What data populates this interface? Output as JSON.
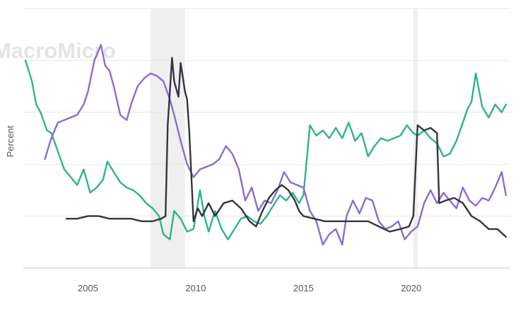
{
  "chart_data": {
    "type": "line",
    "title": "",
    "xlabel": "",
    "ylabel": "Percent",
    "watermark": "MacroMicro",
    "x_ticks": [
      2005,
      2010,
      2015,
      2020
    ],
    "x_tick_labels": [
      "2005",
      "2010",
      "2015",
      "2020"
    ],
    "xlim": [
      2002.0,
      2024.6
    ],
    "ylim": [
      0,
      10
    ],
    "y_gridlines": [
      2,
      4,
      6,
      8,
      10
    ],
    "grid": true,
    "legend": "none",
    "recessions": [
      [
        2007.9,
        2009.5
      ],
      [
        2020.1,
        2020.3
      ]
    ],
    "series": [
      {
        "name": "green",
        "color": "#2fb48c",
        "x": [
          2002.1,
          2002.4,
          2002.6,
          2002.8,
          2003.1,
          2003.3,
          2003.6,
          2003.9,
          2004.2,
          2004.5,
          2004.8,
          2005.1,
          2005.4,
          2005.7,
          2005.9,
          2006.2,
          2006.5,
          2006.8,
          2007.1,
          2007.4,
          2007.7,
          2008.0,
          2008.3,
          2008.5,
          2008.8,
          2009.0,
          2009.3,
          2009.6,
          2009.9,
          2010.2,
          2010.4,
          2010.6,
          2010.9,
          2011.2,
          2011.5,
          2011.8,
          2012.1,
          2012.4,
          2012.7,
          2013.0,
          2013.3,
          2013.6,
          2013.9,
          2014.2,
          2014.5,
          2014.8,
          2015.0,
          2015.3,
          2015.6,
          2015.9,
          2016.2,
          2016.5,
          2016.8,
          2017.1,
          2017.4,
          2017.7,
          2018.0,
          2018.3,
          2018.6,
          2018.9,
          2019.2,
          2019.5,
          2019.8,
          2020.1,
          2020.3,
          2020.6,
          2020.9,
          2021.2,
          2021.5,
          2021.8,
          2022.1,
          2022.4,
          2022.6,
          2022.8,
          2023.0,
          2023.3,
          2023.6,
          2023.9,
          2024.2,
          2024.4
        ],
        "values": [
          8.0,
          7.2,
          6.3,
          6.0,
          5.3,
          5.2,
          4.5,
          3.8,
          3.5,
          3.2,
          3.8,
          2.9,
          3.1,
          3.4,
          4.1,
          3.7,
          3.3,
          3.1,
          3.0,
          2.8,
          2.5,
          2.3,
          2.0,
          1.3,
          1.1,
          2.2,
          1.9,
          1.4,
          1.5,
          3.0,
          2.0,
          1.4,
          2.2,
          1.5,
          1.1,
          1.5,
          1.9,
          2.0,
          1.8,
          1.7,
          2.0,
          2.4,
          2.8,
          2.6,
          2.9,
          2.5,
          2.8,
          5.5,
          5.1,
          5.3,
          5.0,
          5.4,
          5.0,
          5.6,
          4.9,
          5.2,
          4.3,
          4.7,
          5.0,
          4.9,
          5.0,
          5.1,
          5.5,
          5.2,
          5.1,
          5.3,
          5.0,
          4.8,
          4.3,
          4.4,
          4.9,
          5.6,
          6.1,
          6.4,
          7.5,
          6.2,
          5.8,
          6.3,
          6.0,
          6.3
        ]
      },
      {
        "name": "purple",
        "color": "#8d6bd3",
        "x": [
          2003.0,
          2003.3,
          2003.6,
          2003.9,
          2004.2,
          2004.5,
          2004.8,
          2005.0,
          2005.3,
          2005.6,
          2005.8,
          2006.0,
          2006.2,
          2006.5,
          2006.8,
          2007.0,
          2007.3,
          2007.6,
          2007.9,
          2008.2,
          2008.5,
          2008.8,
          2009.0,
          2009.3,
          2009.6,
          2009.9,
          2010.2,
          2010.5,
          2010.8,
          2011.1,
          2011.4,
          2011.7,
          2012.0,
          2012.3,
          2012.6,
          2012.9,
          2013.2,
          2013.5,
          2013.8,
          2014.1,
          2014.4,
          2014.7,
          2015.0,
          2015.3,
          2015.6,
          2015.9,
          2016.2,
          2016.5,
          2016.8,
          2017.0,
          2017.3,
          2017.6,
          2017.9,
          2018.2,
          2018.5,
          2018.8,
          2019.1,
          2019.4,
          2019.7,
          2020.0,
          2020.3,
          2020.6,
          2020.9,
          2021.2,
          2021.5,
          2021.8,
          2022.1,
          2022.4,
          2022.7,
          2023.0,
          2023.3,
          2023.6,
          2023.9,
          2024.2,
          2024.4
        ],
        "values": [
          4.2,
          5.0,
          5.6,
          5.7,
          5.8,
          5.9,
          6.3,
          6.8,
          8.0,
          8.6,
          7.8,
          7.6,
          7.0,
          5.9,
          5.7,
          6.3,
          7.0,
          7.3,
          7.5,
          7.4,
          7.2,
          6.5,
          5.9,
          4.9,
          4.0,
          3.5,
          3.8,
          3.9,
          4.0,
          4.2,
          4.7,
          4.4,
          3.8,
          2.6,
          3.1,
          2.2,
          2.6,
          2.5,
          3.0,
          3.7,
          3.3,
          3.2,
          3.1,
          2.2,
          1.8,
          0.9,
          1.3,
          1.5,
          0.9,
          2.0,
          2.6,
          2.1,
          2.7,
          2.6,
          1.8,
          1.5,
          1.6,
          1.8,
          1.1,
          1.4,
          1.6,
          2.5,
          3.0,
          2.5,
          2.9,
          2.6,
          2.3,
          3.1,
          2.6,
          2.4,
          2.7,
          2.6,
          3.1,
          3.7,
          2.8
        ]
      },
      {
        "name": "black",
        "color": "#343440",
        "x": [
          2004.0,
          2004.5,
          2005.0,
          2005.5,
          2006.0,
          2006.5,
          2007.0,
          2007.5,
          2008.0,
          2008.4,
          2008.6,
          2008.7,
          2008.9,
          2009.0,
          2009.2,
          2009.3,
          2009.5,
          2009.6,
          2009.7,
          2009.9,
          2010.1,
          2010.3,
          2010.6,
          2010.9,
          2011.3,
          2011.7,
          2012.1,
          2012.5,
          2012.8,
          2013.1,
          2013.4,
          2013.7,
          2014.0,
          2014.3,
          2014.6,
          2014.8,
          2015.0,
          2015.5,
          2016.0,
          2016.5,
          2017.0,
          2017.5,
          2018.0,
          2018.5,
          2019.0,
          2019.5,
          2019.9,
          2020.1,
          2020.3,
          2020.6,
          2020.9,
          2021.2,
          2021.3,
          2021.6,
          2022.0,
          2022.4,
          2022.8,
          2023.2,
          2023.6,
          2024.0,
          2024.4
        ],
        "values": [
          1.9,
          1.9,
          2.0,
          2.0,
          1.9,
          1.9,
          1.9,
          1.8,
          1.8,
          1.9,
          2.0,
          5.5,
          8.1,
          7.2,
          6.6,
          7.9,
          6.8,
          6.5,
          5.3,
          1.8,
          2.3,
          2.0,
          2.5,
          2.0,
          2.5,
          2.6,
          2.3,
          1.8,
          1.6,
          2.2,
          2.7,
          3.0,
          3.2,
          3.0,
          2.6,
          2.2,
          2.0,
          1.9,
          1.8,
          1.8,
          1.8,
          1.8,
          1.8,
          1.6,
          1.4,
          1.5,
          1.6,
          2.0,
          5.5,
          5.3,
          5.4,
          5.2,
          2.5,
          2.6,
          2.7,
          2.5,
          2.0,
          1.8,
          1.5,
          1.5,
          1.2
        ]
      }
    ]
  }
}
